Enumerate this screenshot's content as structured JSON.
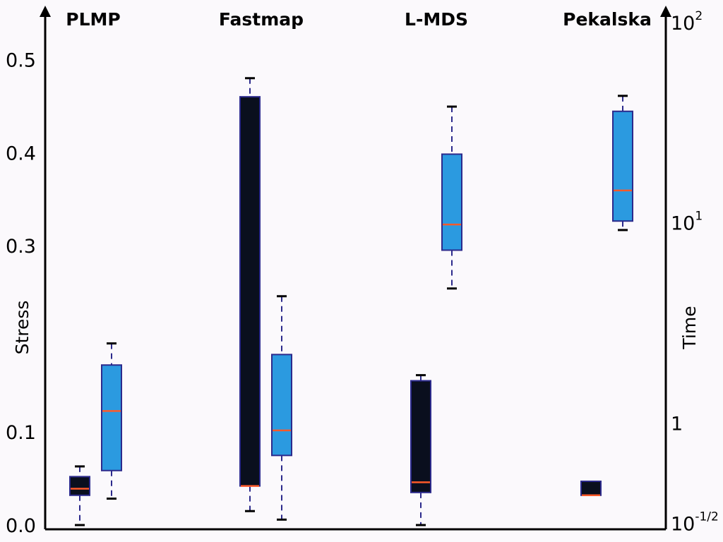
{
  "chart_data": {
    "type": "boxplot",
    "categories": [
      "PLMP",
      "Fastmap",
      "L-MDS",
      "Pekalska"
    ],
    "left_axis": {
      "label": "Stress",
      "scale": "linear",
      "range": [
        0.0,
        0.52
      ],
      "ticks": [
        0.0,
        0.1,
        0.3,
        0.4,
        0.5
      ],
      "tick_labels": [
        "0.0",
        "0.1",
        "0.3",
        "0.4",
        "0.5"
      ]
    },
    "right_axis": {
      "label": "Time",
      "scale": "log",
      "range": [
        0.31,
        110
      ],
      "ticks": [
        0.3162,
        1,
        10,
        100
      ],
      "tick_labels": [
        {
          "base": "10",
          "exp": "-1/2"
        },
        {
          "base": "1",
          "exp": ""
        },
        {
          "base": "10",
          "exp": "1"
        },
        {
          "base": "10",
          "exp": "2"
        }
      ]
    },
    "colors": {
      "stress_box": "#0a0f1e",
      "time_box": "#2b9ae0",
      "box_edge": "#2c2a8c",
      "median": "#ff5a2a",
      "whisker": "#2c2a8c"
    },
    "series": [
      {
        "axis": "left",
        "boxes": [
          {
            "category": "PLMP",
            "whisker_low": 0.0,
            "q1": 0.032,
            "median": 0.039,
            "q3": 0.052,
            "whisker_high": 0.063
          },
          {
            "category": "Fastmap",
            "whisker_low": 0.015,
            "q1": 0.042,
            "median": 0.042,
            "q3": 0.46,
            "whisker_high": 0.48
          },
          {
            "category": "L-MDS",
            "whisker_low": 0.0,
            "q1": 0.035,
            "median": 0.046,
            "q3": 0.155,
            "whisker_high": 0.161
          },
          {
            "category": "Pekalska",
            "whisker_low": 0.032,
            "q1": 0.032,
            "median": 0.032,
            "q3": 0.047,
            "whisker_high": 0.047
          }
        ]
      },
      {
        "axis": "right",
        "boxes": [
          {
            "category": "PLMP",
            "whisker_low": 0.42,
            "q1": 0.58,
            "median": 1.15,
            "q3": 1.95,
            "whisker_high": 2.5
          },
          {
            "category": "Fastmap",
            "whisker_low": 0.33,
            "q1": 0.69,
            "median": 0.92,
            "q3": 2.2,
            "whisker_high": 4.3
          },
          {
            "category": "L-MDS",
            "whisker_low": 4.7,
            "q1": 7.3,
            "median": 9.8,
            "q3": 22,
            "whisker_high": 38
          },
          {
            "category": "Pekalska",
            "whisker_low": 9.2,
            "q1": 10.2,
            "median": 14.5,
            "q3": 36,
            "whisker_high": 43
          }
        ]
      }
    ]
  }
}
